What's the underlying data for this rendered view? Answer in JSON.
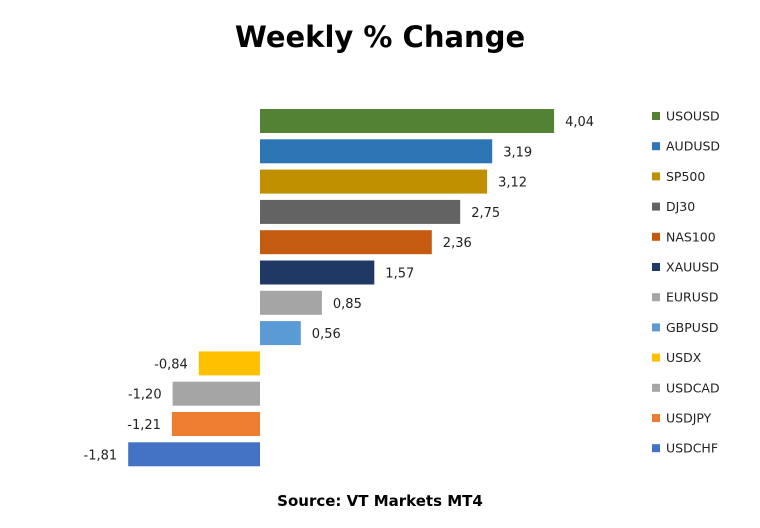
{
  "title": "Weekly % Change",
  "source": "Source: VT Markets MT4",
  "chart_data": {
    "type": "bar",
    "orientation": "horizontal",
    "title": "Weekly % Change",
    "categories": [
      "USOUSD",
      "AUDUSD",
      "SP500",
      "DJ30",
      "NAS100",
      "XAUUSD",
      "EURUSD",
      "GBPUSD",
      "USDX",
      "USDCAD",
      "USDJPY",
      "USDCHF"
    ],
    "values": [
      4.04,
      3.19,
      3.12,
      2.75,
      2.36,
      1.57,
      0.85,
      0.56,
      -0.84,
      -1.2,
      -1.21,
      -1.81
    ],
    "data_labels": [
      "4,04",
      "3,19",
      "3,12",
      "2,75",
      "2,36",
      "1,57",
      "0,85",
      "0,56",
      "-0,84",
      "-1,20",
      "-1,21",
      "-1,81"
    ],
    "colors": {
      "USOUSD": "#548235",
      "AUDUSD": "#2E75B6",
      "SP500": "#BF8F00",
      "DJ30": "#636363",
      "NAS100": "#C55A11",
      "XAUUSD": "#203864",
      "EURUSD": "#A5A5A5",
      "GBPUSD": "#5B9BD5",
      "USDX": "#FFC000",
      "USDCAD": "#A5A5A5",
      "USDJPY": "#ED7D31",
      "USDCHF": "#4472C4"
    },
    "legend": "right",
    "grid": false
  }
}
